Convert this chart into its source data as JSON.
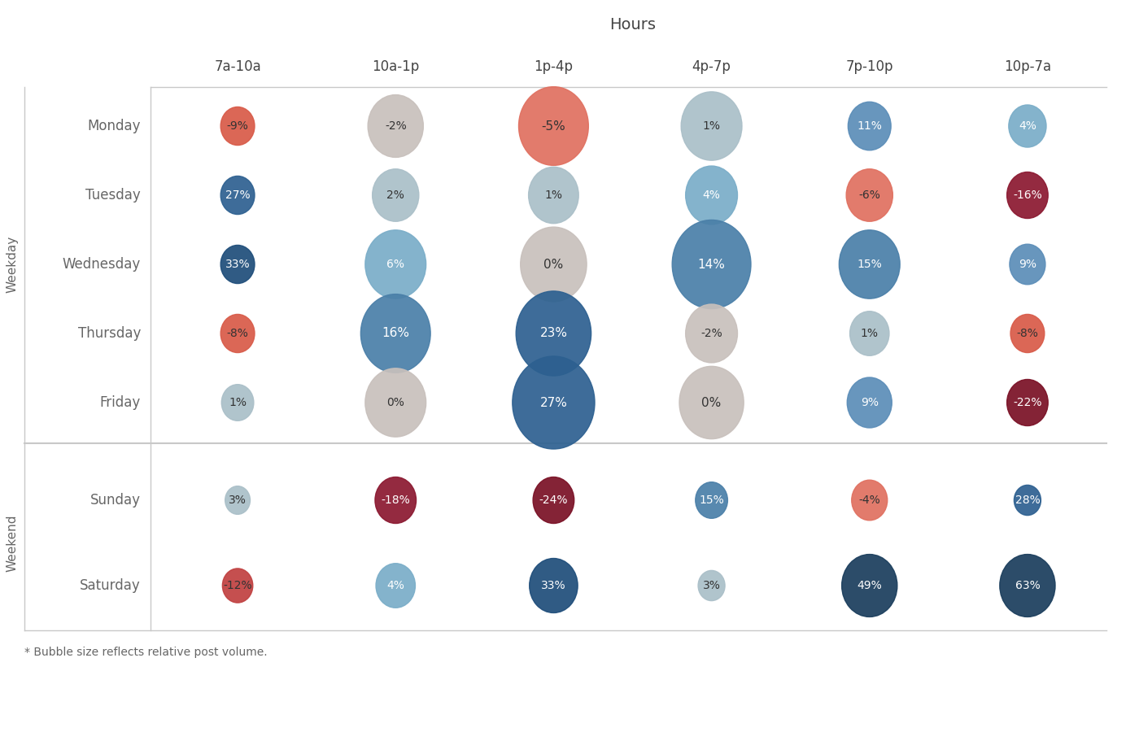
{
  "title": "Hours",
  "footnote": "* Bubble size reflects relative post volume.",
  "col_labels": [
    "7a-10a",
    "10a-1p",
    "1p-4p",
    "4p-7p",
    "7p-10p",
    "10p-7a"
  ],
  "row_labels": [
    "Monday",
    "Tuesday",
    "Wednesday",
    "Thursday",
    "Friday",
    "Sunday",
    "Saturday"
  ],
  "weekday_rows": [
    "Monday",
    "Tuesday",
    "Wednesday",
    "Thursday",
    "Friday"
  ],
  "weekend_rows": [
    "Sunday",
    "Saturday"
  ],
  "data": {
    "Monday": [
      -9,
      -2,
      -5,
      1,
      11,
      4
    ],
    "Tuesday": [
      27,
      2,
      1,
      4,
      -6,
      -16
    ],
    "Wednesday": [
      33,
      6,
      0,
      14,
      15,
      9
    ],
    "Thursday": [
      -8,
      16,
      23,
      -2,
      1,
      -8
    ],
    "Friday": [
      1,
      0,
      27,
      0,
      9,
      -22
    ],
    "Sunday": [
      3,
      -18,
      -24,
      15,
      -4,
      28
    ],
    "Saturday": [
      -12,
      4,
      33,
      3,
      49,
      63
    ]
  },
  "bubble_sizes": {
    "Monday": [
      0.38,
      0.62,
      0.78,
      0.68,
      0.48,
      0.42
    ],
    "Tuesday": [
      0.38,
      0.52,
      0.56,
      0.58,
      0.52,
      0.46
    ],
    "Wednesday": [
      0.38,
      0.68,
      0.74,
      0.88,
      0.68,
      0.4
    ],
    "Thursday": [
      0.38,
      0.78,
      0.84,
      0.58,
      0.44,
      0.38
    ],
    "Friday": [
      0.36,
      0.68,
      0.92,
      0.72,
      0.5,
      0.46
    ],
    "Sunday": [
      0.28,
      0.46,
      0.46,
      0.36,
      0.4,
      0.3
    ],
    "Saturday": [
      0.34,
      0.44,
      0.54,
      0.3,
      0.62,
      0.62
    ]
  },
  "colors": {
    "63": "#1a3d5c",
    "49": "#1e4d7a",
    "33": "#2d6090",
    "28": "#2d6090",
    "27": "#2d6090",
    "23": "#2d6090",
    "16": "#4a7fa8",
    "15": "#5b8db8",
    "14": "#5b8db8",
    "11": "#4a7fa8",
    "9": "#7aadc8",
    "6": "#7aadc8",
    "4": "#8fbcd0",
    "3": "#c8c0bc",
    "2": "#c8c0bc",
    "1": "#c8c0bc",
    "0": "#c8c0bc",
    "-2": "#c8c0bc",
    "-4": "#e8a090",
    "-5": "#e07060",
    "-6": "#e07060",
    "-8": "#d85a48",
    "-9": "#d85a48",
    "-12": "#c04040",
    "-16": "#9a2030",
    "-18": "#8b1830",
    "-22": "#8b1830",
    "-24": "#7a1025"
  },
  "background_color": "#ffffff",
  "grid_color": "#c8c8c8",
  "label_color": "#666666",
  "header_color": "#444444"
}
